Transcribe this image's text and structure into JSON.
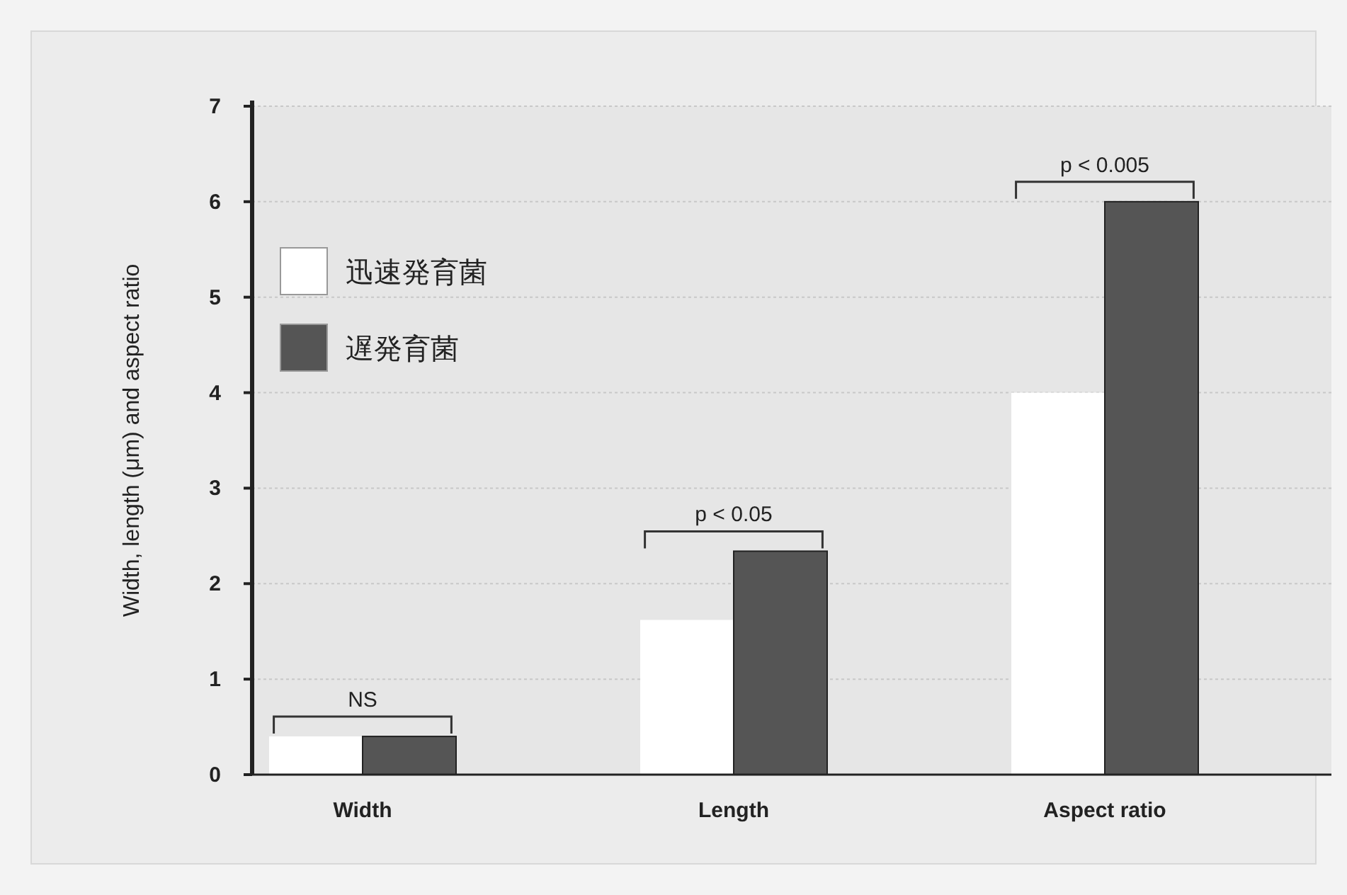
{
  "chart_data": {
    "type": "bar",
    "ylabel": "Width, length (μm) and aspect ratio",
    "categories": [
      "Width",
      "Length",
      "Aspect ratio"
    ],
    "series": [
      {
        "name": "迅速発育菌",
        "color": "#ffffff",
        "values": [
          0.4,
          1.62,
          4.0
        ]
      },
      {
        "name": "遅発育菌",
        "color": "#555555",
        "values": [
          0.4,
          2.34,
          6.0
        ]
      }
    ],
    "ylim": [
      0,
      7
    ],
    "yticks": [
      0,
      1,
      2,
      3,
      4,
      5,
      6,
      7
    ],
    "grid": "y",
    "legend": "top left",
    "annotations": [
      "NS",
      "p < 0.05",
      "p < 0.005"
    ]
  }
}
